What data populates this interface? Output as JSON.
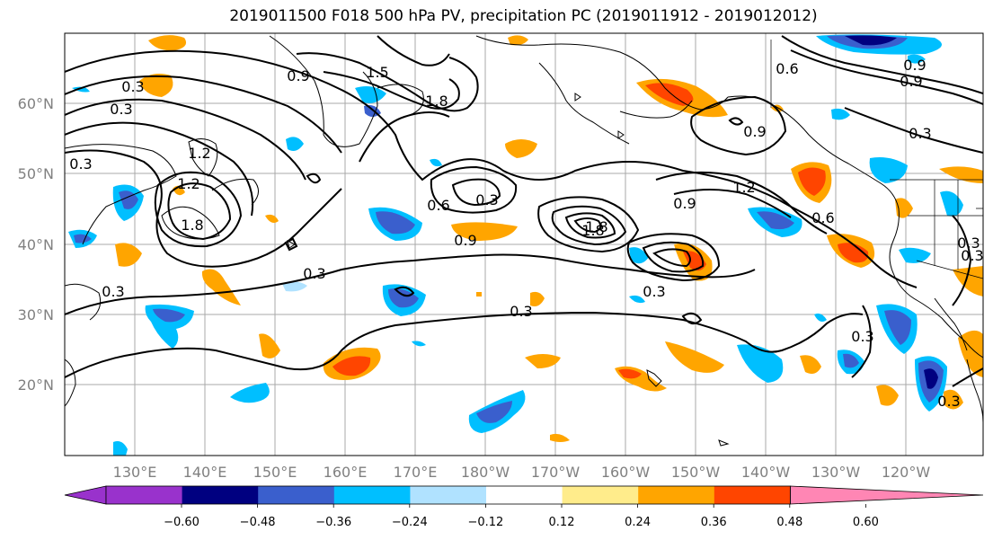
{
  "title": "2019011500 F018 500 hPa PV, precipitation PC (2019011912 - 2019012012)",
  "lat_labels": [
    "60°N",
    "50°N",
    "40°N",
    "30°N",
    "20°N"
  ],
  "lon_labels": [
    "130°E",
    "140°E",
    "150°E",
    "160°E",
    "170°E",
    "180°W",
    "170°W",
    "160°W",
    "150°W",
    "140°W",
    "130°W",
    "120°W"
  ],
  "colorbar": {
    "colors": [
      "#9932cc",
      "#000080",
      "#3a5fcd",
      "#00bfff",
      "#b0e2ff",
      "#ffffff",
      "#ffec8b",
      "#ffa500",
      "#ff4500",
      "#b22222",
      "#ff86b4"
    ],
    "tick_labels": [
      "−0.60",
      "−0.48",
      "−0.36",
      "−0.24",
      "−0.12",
      "0.12",
      "0.24",
      "0.36",
      "0.48",
      "0.60"
    ]
  },
  "contour_labels": [
    "0.9",
    "1.5",
    "1.8",
    "0.3",
    "1.2",
    "1.8",
    "0.6",
    "0.3",
    "0.9",
    "0.3",
    "1.8",
    "1.2",
    "0.9",
    "1.2",
    "0.6",
    "0.9",
    "0.3",
    "0.3",
    "0.3",
    "0.3",
    "0.6",
    "0.9",
    "0.3",
    "0.3",
    "0.3",
    "0.9",
    "1.8",
    "0.3",
    "0.3",
    "0.3"
  ]
}
